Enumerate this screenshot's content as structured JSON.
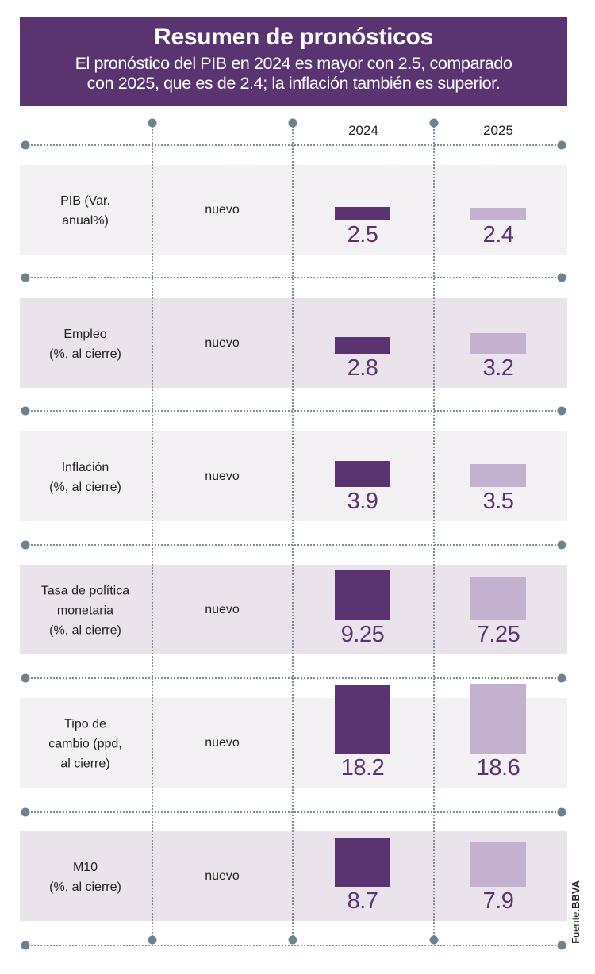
{
  "header": {
    "title": "Resumen de pronósticos",
    "subtitle_line1": "El pronóstico del PIB en 2024 es mayor con 2.5, comparado",
    "subtitle_line2": "con 2025, que es de 2.4; la inflación también es superior."
  },
  "columns": {
    "y2024": "2024",
    "y2025": "2025"
  },
  "source": {
    "label": "Fuente:",
    "name": "BBVA"
  },
  "colors": {
    "header_bg": "#5a3371",
    "bar_2024": "#5a3371",
    "bar_2025": "#c3b1cf",
    "row_light": "#f4f1f4",
    "row_dark": "#ebe3eb"
  },
  "chart_data": {
    "type": "table",
    "title": "Resumen de pronósticos",
    "series": [
      {
        "name": "2024"
      },
      {
        "name": "2025"
      }
    ],
    "rows": [
      {
        "label_lines": [
          "PIB (Var.",
          "anual%)"
        ],
        "status": "nuevo",
        "v2024": "2.5",
        "v2025": "2.4"
      },
      {
        "label_lines": [
          "Empleo",
          "(%, al cierre)"
        ],
        "status": "nuevo",
        "v2024": "2.8",
        "v2025": "3.2"
      },
      {
        "label_lines": [
          "Inflación",
          "(%, al cierre)"
        ],
        "status": "nuevo",
        "v2024": "3.9",
        "v2025": "3.5"
      },
      {
        "label_lines": [
          "Tasa de política",
          "monetaria",
          "(%, al cierre)"
        ],
        "status": "nuevo",
        "v2024": "9.25",
        "v2025": "7.25"
      },
      {
        "label_lines": [
          "Tipo de",
          "cambio (ppd,",
          "al cierre)"
        ],
        "status": "nuevo",
        "v2024": "18.2",
        "v2025": "18.6"
      },
      {
        "label_lines": [
          "M10",
          "(%, al cierre)"
        ],
        "status": "nuevo",
        "v2024": "8.7",
        "v2025": "7.9"
      }
    ]
  }
}
